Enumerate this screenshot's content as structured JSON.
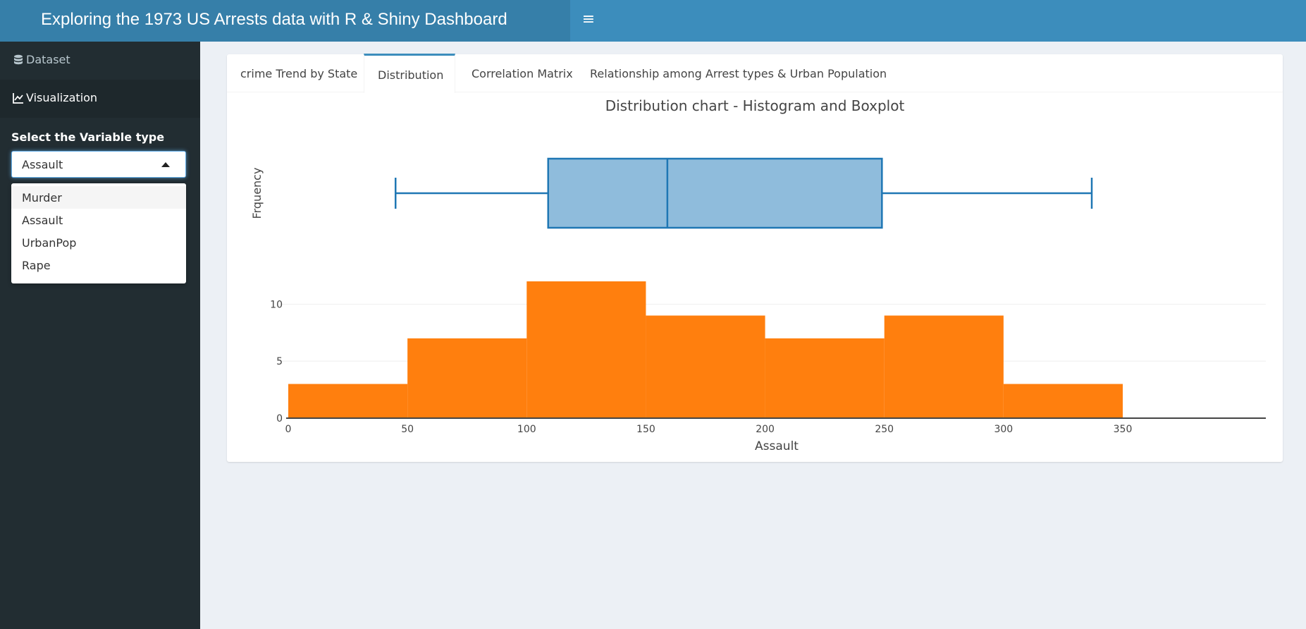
{
  "header": {
    "title": "Exploring the 1973 US Arrests data with R & Shiny Dashboard",
    "toggle_icon": "hamburger-icon"
  },
  "sidebar": {
    "items": [
      {
        "label": "Dataset",
        "icon": "database-icon"
      },
      {
        "label": "Visualization",
        "icon": "line-chart-icon"
      }
    ],
    "select_label": "Select the Variable type",
    "selected": "Assault",
    "options": [
      "Murder",
      "Assault",
      "UrbanPop",
      "Rape"
    ]
  },
  "tabs": [
    "crime Trend by State",
    "Distribution",
    "Correlation Matrix",
    "Relationship among Arrest types & Urban Population"
  ],
  "active_tab": "Distribution",
  "colors": {
    "header": "#3c8dbc",
    "brand": "#367fa9",
    "sidebar": "#222d32",
    "histogram": "#ff7f0e",
    "boxplot": "#1f77b4"
  },
  "chart_data": {
    "type": "histogram+boxplot",
    "title": "Distribution chart - Histogram and Boxplot",
    "xlabel": "Assault",
    "ylabel": "Frquency",
    "xlim": [
      0,
      350
    ],
    "ylim": [
      0,
      12
    ],
    "x_ticks": [
      "0",
      "50",
      "100",
      "150",
      "200",
      "250",
      "300",
      "350"
    ],
    "y_ticks": [
      "0",
      "5",
      "10"
    ],
    "bins": [
      {
        "start": 0,
        "end": 50,
        "count": 3
      },
      {
        "start": 50,
        "end": 100,
        "count": 7
      },
      {
        "start": 100,
        "end": 150,
        "count": 12
      },
      {
        "start": 150,
        "end": 200,
        "count": 9
      },
      {
        "start": 200,
        "end": 250,
        "count": 7
      },
      {
        "start": 250,
        "end": 300,
        "count": 9
      },
      {
        "start": 300,
        "end": 350,
        "count": 3
      }
    ],
    "boxplot": {
      "min": 45,
      "q1": 109,
      "median": 159,
      "q3": 249,
      "max": 337
    }
  }
}
